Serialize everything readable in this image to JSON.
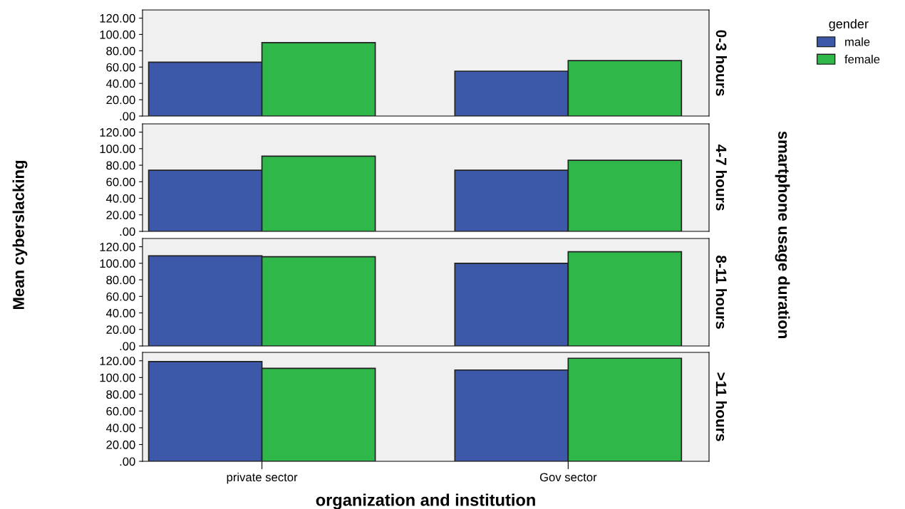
{
  "chart_data": [
    {
      "type": "bar",
      "title": "0-3 hours",
      "ylabel": "Mean cyberslacking",
      "legend_title": "gender",
      "legend": "top right",
      "annotations": [
        "smartphone usage duration"
      ],
      "tick_labels": "y",
      "categories": [
        null,
        null
      ],
      "series": [
        {
          "name": "male",
          "color": "#3d58a9",
          "values": [
            66,
            55
          ]
        },
        {
          "name": "female",
          "color": "#2fb74a",
          "values": [
            90,
            68
          ]
        }
      ],
      "ylim": [
        0,
        130
      ],
      "yticks": [
        {
          "value": 0,
          "label": ".00"
        },
        {
          "value": 20,
          "label": "20.00"
        },
        {
          "value": 40,
          "label": "40.00"
        },
        {
          "value": 60,
          "label": "60.00"
        },
        {
          "value": 80,
          "label": "80.00"
        },
        {
          "value": 100,
          "label": "100.00"
        },
        {
          "value": 120,
          "label": "120.00"
        }
      ]
    },
    {
      "type": "bar",
      "title": "4-7 hours",
      "tick_labels": "y",
      "categories": [
        null,
        null
      ],
      "series": [
        {
          "color": "#3d58a9",
          "values": [
            74,
            74
          ]
        },
        {
          "color": "#2fb74a",
          "values": [
            91,
            86
          ]
        }
      ],
      "ylim": [
        0,
        130
      ],
      "yticks": [
        {
          "value": 0,
          "label": ".00"
        },
        {
          "value": 20,
          "label": "20.00"
        },
        {
          "value": 40,
          "label": "40.00"
        },
        {
          "value": 60,
          "label": "60.00"
        },
        {
          "value": 80,
          "label": "80.00"
        },
        {
          "value": 100,
          "label": "100.00"
        },
        {
          "value": 120,
          "label": "120.00"
        }
      ]
    },
    {
      "type": "bar",
      "title": "8-11 hours",
      "tick_labels": "y",
      "categories": [
        null,
        null
      ],
      "series": [
        {
          "color": "#3d58a9",
          "values": [
            109,
            100
          ]
        },
        {
          "color": "#2fb74a",
          "values": [
            108,
            114
          ]
        }
      ],
      "ylim": [
        0,
        130
      ],
      "yticks": [
        {
          "value": 0,
          "label": ".00"
        },
        {
          "value": 20,
          "label": "20.00"
        },
        {
          "value": 40,
          "label": "40.00"
        },
        {
          "value": 60,
          "label": "60.00"
        },
        {
          "value": 80,
          "label": "80.00"
        },
        {
          "value": 100,
          "label": "100.00"
        },
        {
          "value": 120,
          "label": "120.00"
        }
      ]
    },
    {
      "type": "bar",
      "title": ">11 hours",
      "xlabel": "organization and institution",
      "categories": [
        "private sector",
        "Gov sector"
      ],
      "series": [
        {
          "color": "#3d58a9",
          "values": [
            119,
            109
          ]
        },
        {
          "color": "#2fb74a",
          "values": [
            111,
            123
          ]
        }
      ],
      "ylim": [
        0,
        130
      ],
      "yticks": [
        {
          "value": 0,
          "label": ".00"
        },
        {
          "value": 20,
          "label": "20.00"
        },
        {
          "value": 40,
          "label": "40.00"
        },
        {
          "value": 60,
          "label": "60.00"
        },
        {
          "value": 80,
          "label": "80.00"
        },
        {
          "value": 100,
          "label": "100.00"
        },
        {
          "value": 120,
          "label": "120.00"
        }
      ]
    }
  ]
}
